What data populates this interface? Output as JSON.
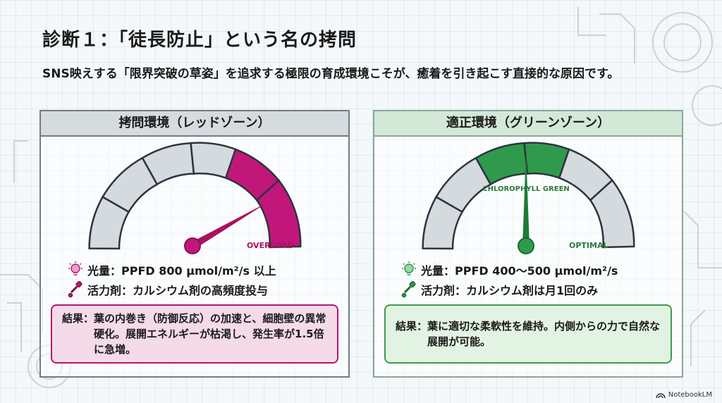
{
  "title": "診断１：「徒長防止」という名の拷問",
  "subtitle": "SNS映えする「限界突破の草姿」を追求する極限の育成環境こそが、癒着を引き起こす直接的な原因です。",
  "panels": {
    "red": {
      "header": "拷問環境（レッドゾーン）",
      "gauge_label": "OVERLOAD",
      "light_label": "光量：",
      "light_value": "PPFD 800 µmol/m²/s 以上",
      "tonic_label": "活力剤：",
      "tonic_value": "カルシウム剤の高頻度投与",
      "result_label": "結果：",
      "result_text": "葉の内巻き（防御反応）の加速と、細胞壁の異常硬化。展開エネルギーが枯渇し、発生率が1.5倍に急増。",
      "accent_color": "#c2177a"
    },
    "green": {
      "header": "適正環境（グリーンゾーン）",
      "gauge_zone_label": "CHLOROPHYLL GREEN",
      "gauge_label": "OPTIMAL",
      "light_label": "光量：",
      "light_value": "PPFD 400〜500 µmol/m²/s",
      "tonic_label": "活力剤：",
      "tonic_value": "カルシウム剤は月1回のみ",
      "result_label": "結果：",
      "result_text": "葉に適切な柔軟性を維持。内側からの力で自然な展開が可能。",
      "accent_color": "#2f9a4c"
    }
  },
  "icons": {
    "light": "lightbulb-icon",
    "tonic": "dropper-icon",
    "brand": "notebooklm-logo-icon"
  },
  "brand": "NotebookLM"
}
